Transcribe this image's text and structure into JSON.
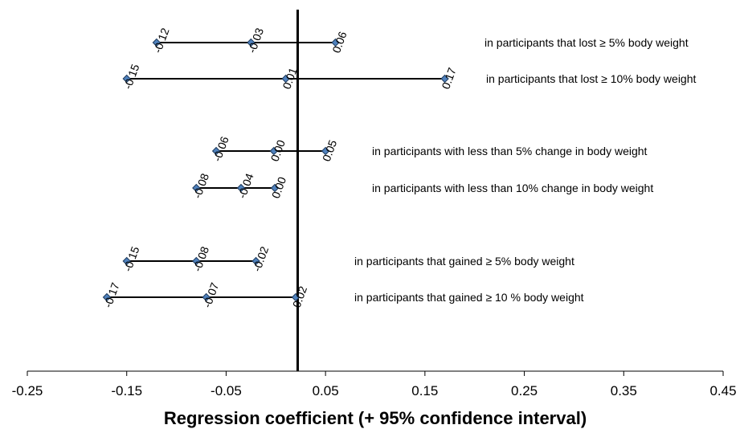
{
  "chart_data": {
    "type": "forest",
    "xlabel": "Regression coefficient (+ 95% confidence interval)",
    "xlim": [
      -0.25,
      0.45
    ],
    "x_ticks": [
      -0.25,
      -0.15,
      -0.05,
      0.05,
      0.15,
      0.25,
      0.35,
      0.45
    ],
    "x_tick_labels": [
      "-0.25",
      "-0.15",
      "-0.05",
      "0.05",
      "0.15",
      "0.25",
      "0.35",
      "0.45"
    ],
    "reference_line_x": 0.022,
    "marker_color": "#4f81bd",
    "rows": [
      {
        "label": "in participants that lost ≥ 5% body weight",
        "lower": -0.12,
        "estimate": -0.025,
        "upper": 0.06,
        "lower_label": "-0.12",
        "estimate_label": "-0.03",
        "upper_label": "0.06"
      },
      {
        "label": "in participants that lost ≥ 10% body weight",
        "lower": -0.15,
        "estimate": 0.01,
        "upper": 0.17,
        "lower_label": "-0.15",
        "estimate_label": "0.01",
        "upper_label": "0.17"
      },
      {
        "label": "in participants with less than 5% change in body weight",
        "lower": -0.06,
        "estimate": -0.002,
        "upper": 0.05,
        "lower_label": "-0.06",
        "estimate_label": "0.00",
        "upper_label": "0.05"
      },
      {
        "label": "in participants with less than 10% change in body weight",
        "lower": -0.08,
        "estimate": -0.035,
        "upper": -0.001,
        "lower_label": "-0.08",
        "estimate_label": "-0.04",
        "upper_label": "0.00"
      },
      {
        "label": "in participants that gained ≥ 5% body weight",
        "lower": -0.15,
        "estimate": -0.08,
        "upper": -0.02,
        "lower_label": "-0.15",
        "estimate_label": "-0.08",
        "upper_label": "-0.02"
      },
      {
        "label": "in participants that gained ≥ 10 % body weight",
        "lower": -0.17,
        "estimate": -0.07,
        "upper": 0.02,
        "lower_label": "-0.17",
        "estimate_label": "-0.07",
        "upper_label": "0.02"
      }
    ]
  }
}
